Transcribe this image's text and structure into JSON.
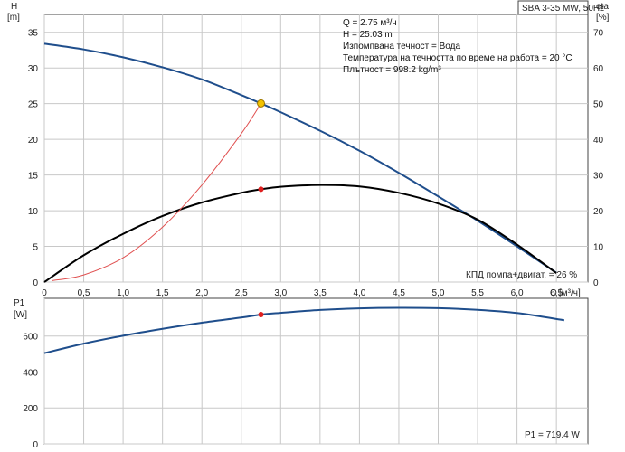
{
  "title": "SBA 3-35 MW, 50Hz",
  "info": [
    "Q = 2.75 м³/ч",
    "H = 25.03 m",
    "Изпомпвана течност = Вода",
    "Температура на течността по време на работа = 20 °C",
    "Плътност = 998.2 kg/m³"
  ],
  "colors": {
    "head": "#1f4e8c",
    "efficiency": "#000000",
    "system": "#e05050",
    "power": "#1f4e8c",
    "marker": "#e02020",
    "duty": "#f2c200"
  },
  "chart_data": [
    {
      "type": "line",
      "x_label": "Q",
      "x_unit": "[м³/ч]",
      "y_label": "H",
      "y_unit": "[m]",
      "y2_label": "eta",
      "y2_unit": "[%]",
      "xlim": [
        0,
        6.9
      ],
      "ylim": [
        0,
        37.5
      ],
      "y2lim": [
        0,
        75
      ],
      "x_ticks": [
        "0",
        "0,5",
        "1,0",
        "1,5",
        "2,0",
        "2,5",
        "3,0",
        "3,5",
        "4,0",
        "4,5",
        "5,0",
        "5,5",
        "6,0",
        "6,5"
      ],
      "y_ticks": [
        "0",
        "5",
        "10",
        "15",
        "20",
        "25",
        "30",
        "35"
      ],
      "y2_ticks": [
        "0",
        "10",
        "20",
        "30",
        "40",
        "50",
        "60",
        "70"
      ],
      "series": [
        {
          "key": "head",
          "axis": "left",
          "x": [
            0,
            0.5,
            1,
            1.5,
            2,
            2.5,
            2.75,
            3,
            3.5,
            4,
            4.5,
            5,
            5.5,
            6,
            6.5
          ],
          "values": [
            33.4,
            32.6,
            31.5,
            30.1,
            28.4,
            26.2,
            25.03,
            23.8,
            21.2,
            18.4,
            15.3,
            12.0,
            8.6,
            5.0,
            1.3
          ]
        },
        {
          "key": "efficiency",
          "axis": "right",
          "name": "КПД помпа+двигат.",
          "x": [
            0,
            0.5,
            1,
            1.5,
            2,
            2.5,
            2.75,
            3,
            3.5,
            4,
            4.5,
            5,
            5.5,
            6,
            6.5
          ],
          "values": [
            0,
            7.5,
            13.5,
            18.5,
            22.3,
            25.0,
            26.0,
            26.7,
            27.2,
            26.8,
            25.0,
            22.0,
            17.5,
            10.5,
            2.5
          ]
        },
        {
          "key": "system",
          "axis": "left",
          "x": [
            0.1,
            0.5,
            1.0,
            1.5,
            2.0,
            2.5,
            2.75
          ],
          "values": [
            0.2,
            1.0,
            3.4,
            7.7,
            13.6,
            20.8,
            25.03
          ]
        }
      ],
      "duty_point": {
        "x": 2.75,
        "y": 25.03
      },
      "efficiency_point": {
        "x": 2.75,
        "eta": 26
      },
      "efficiency_label": "КПД помпа+двигат. = 26 %"
    },
    {
      "type": "line",
      "y_label": "P1",
      "y_unit": "[W]",
      "xlim": [
        0,
        6.9
      ],
      "ylim": [
        0,
        810
      ],
      "y_ticks": [
        "0",
        "200",
        "400",
        "600"
      ],
      "series": [
        {
          "key": "power",
          "axis": "left",
          "x": [
            0,
            0.5,
            1,
            1.5,
            2,
            2.5,
            2.75,
            3,
            3.5,
            4,
            4.5,
            5,
            5.5,
            6,
            6.6
          ],
          "values": [
            505,
            558,
            602,
            640,
            674,
            703,
            719.4,
            729,
            745,
            754,
            757,
            755,
            746,
            728,
            688
          ]
        }
      ],
      "power_point": {
        "x": 2.75,
        "y": 719.4
      },
      "power_label": "P1 = 719.4 W"
    }
  ]
}
